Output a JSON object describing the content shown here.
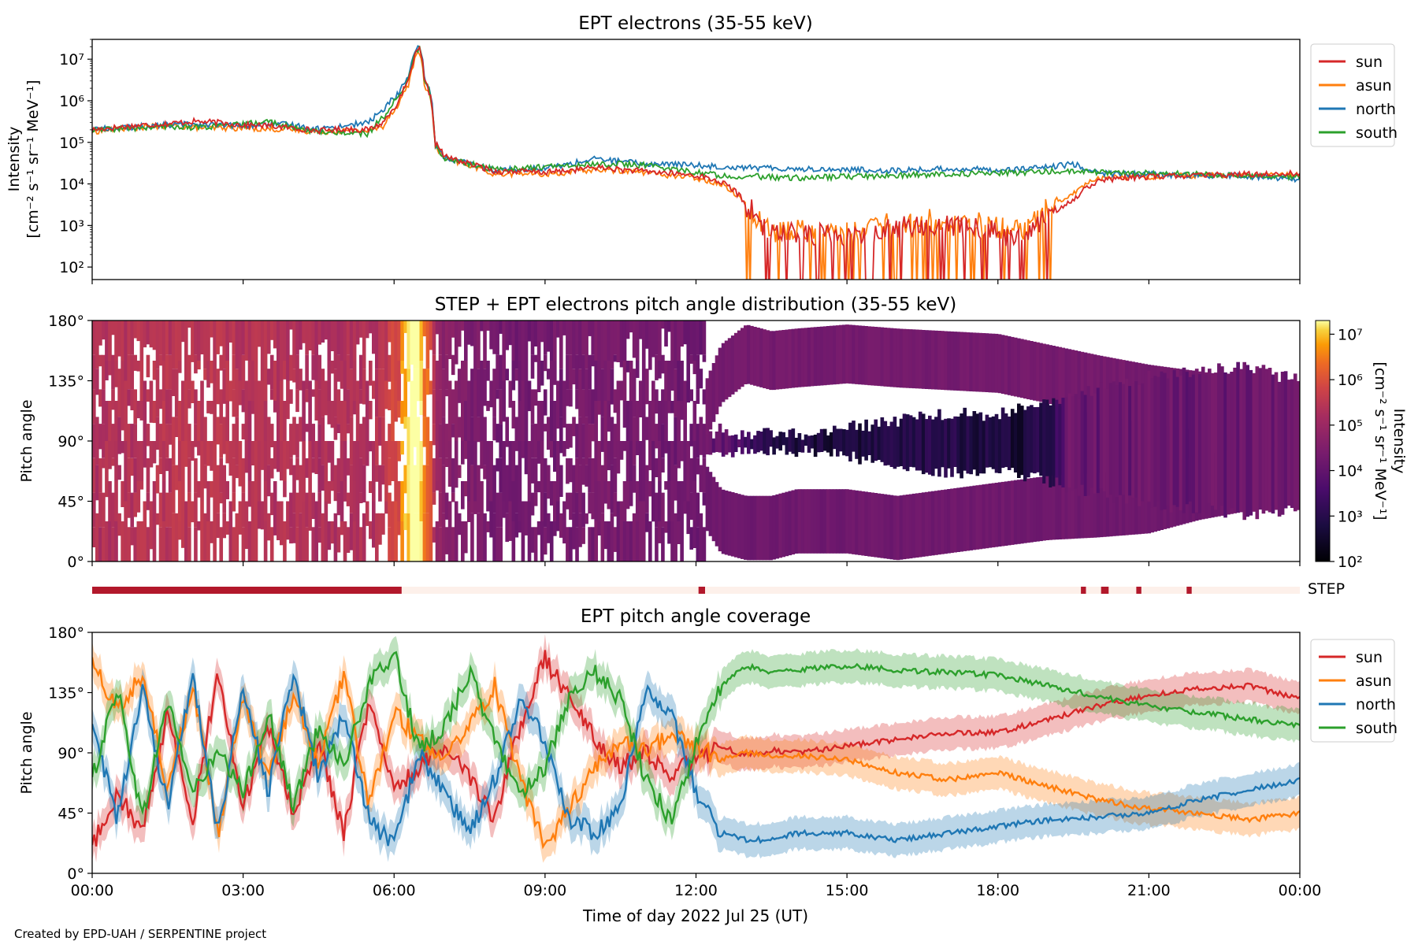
{
  "footer": "Created by EPD-UAH / SERPENTINE project",
  "chart_data": [
    {
      "type": "line",
      "title": "EPT electrons (35-55 keV)",
      "ylabel_lines": [
        "Intensity",
        "[cm⁻² s⁻¹ sr⁻¹ MeV⁻¹]"
      ],
      "yscale": "log",
      "ylim": [
        50,
        30000000
      ],
      "yticks": [
        100,
        1000,
        10000,
        100000,
        1000000,
        10000000
      ],
      "ytick_labels": [
        "10²",
        "10³",
        "10⁴",
        "10⁵",
        "10⁶",
        "10⁷"
      ],
      "xlim_hours": [
        0,
        24
      ],
      "legend_position": "outside-right",
      "x_hours": [
        0,
        0.5,
        1,
        1.5,
        2,
        2.5,
        3,
        3.5,
        4,
        4.5,
        5,
        5.5,
        5.8,
        6.1,
        6.3,
        6.5,
        6.6,
        6.8,
        7,
        7.5,
        8,
        8.5,
        9,
        9.5,
        10,
        10.5,
        11,
        11.5,
        12,
        12.5,
        13,
        13.3,
        13.6,
        14,
        15,
        16,
        17,
        18,
        18.5,
        19,
        19.5,
        20,
        21,
        22,
        23,
        24
      ],
      "series": [
        {
          "name": "sun",
          "color": "#d62728",
          "values": [
            200000,
            230000,
            260000,
            280000,
            320000,
            300000,
            260000,
            250000,
            220000,
            190000,
            210000,
            200000,
            300000,
            900000,
            3000000,
            18000000,
            3000000,
            100000,
            45000,
            30000,
            20000,
            20000,
            19000,
            21000,
            25000,
            22000,
            20000,
            18000,
            16000,
            11000,
            3000,
            1000,
            600,
            700,
            500,
            900,
            1000,
            700,
            400,
            1500,
            4000,
            12000,
            15000,
            16000,
            17000,
            18000
          ]
        },
        {
          "name": "asun",
          "color": "#ff7f0e",
          "values": [
            180000,
            210000,
            230000,
            250000,
            230000,
            220000,
            220000,
            210000,
            200000,
            180000,
            190000,
            190000,
            250000,
            800000,
            2500000,
            15000000,
            2500000,
            80000,
            40000,
            28000,
            17000,
            18000,
            17000,
            19000,
            22000,
            21000,
            19000,
            16000,
            14000,
            10000,
            2800,
            1100,
            700,
            800,
            700,
            1200,
            1500,
            900,
            700,
            2500,
            6000,
            14000,
            15000,
            16000,
            16000,
            17000
          ]
        },
        {
          "name": "north",
          "color": "#1f77b4",
          "values": [
            210000,
            220000,
            240000,
            260000,
            280000,
            260000,
            250000,
            280000,
            260000,
            210000,
            250000,
            300000,
            600000,
            1500000,
            4000000,
            20000000,
            3500000,
            90000,
            42000,
            30000,
            22000,
            23000,
            24000,
            30000,
            40000,
            35000,
            30000,
            30000,
            28000,
            26000,
            25000,
            24000,
            24000,
            23000,
            22000,
            21000,
            23000,
            22000,
            23000,
            25000,
            30000,
            18000,
            17000,
            16000,
            15000,
            13000
          ]
        },
        {
          "name": "south",
          "color": "#2ca02c",
          "values": [
            190000,
            210000,
            220000,
            240000,
            230000,
            240000,
            270000,
            320000,
            220000,
            180000,
            170000,
            160000,
            400000,
            1200000,
            3500000,
            19000000,
            3200000,
            85000,
            40000,
            30000,
            22000,
            24000,
            26000,
            27000,
            30000,
            30000,
            28000,
            23000,
            19000,
            16000,
            15000,
            15000,
            14000,
            14000,
            15000,
            16000,
            17000,
            18000,
            19000,
            20000,
            20000,
            19000,
            18000,
            17000,
            16000,
            15000
          ]
        }
      ]
    },
    {
      "type": "heatmap",
      "title": "STEP + EPT electrons pitch angle distribution (35-55 keV)",
      "ylabel": "Pitch angle",
      "ylim": [
        0,
        180
      ],
      "yticks": [
        0,
        45,
        90,
        135,
        180
      ],
      "ytick_labels": [
        "0°",
        "45°",
        "90°",
        "135°",
        "180°"
      ],
      "xlim_hours": [
        0,
        24
      ],
      "colormap": "inferno",
      "colorbar": {
        "label_lines": [
          "Intensity",
          "[cm⁻² s⁻¹ sr⁻¹ MeV⁻¹]"
        ],
        "scale": "log",
        "range": [
          100,
          20000000
        ],
        "ticks": [
          100,
          1000,
          10000,
          100000,
          1000000,
          10000000
        ],
        "tick_labels": [
          "10²",
          "10³",
          "10⁴",
          "10⁵",
          "10⁶",
          "10⁷"
        ]
      }
    },
    {
      "type": "bar",
      "label": "STEP",
      "description": "STEP data availability strip",
      "xlim_hours": [
        0,
        24
      ],
      "present_color": "#b2182b",
      "absent_color": "#fdf0ea",
      "present_intervals_hours": [
        [
          0,
          6.15
        ],
        [
          12.05,
          12.18
        ],
        [
          19.65,
          19.75
        ],
        [
          20.05,
          20.2
        ],
        [
          20.75,
          20.85
        ],
        [
          21.75,
          21.85
        ]
      ]
    },
    {
      "type": "line",
      "title": "EPT pitch angle coverage",
      "ylabel": "Pitch angle",
      "xlabel": "Time of day 2022 Jul 25 (UT)",
      "ylim": [
        0,
        180
      ],
      "yticks": [
        0,
        45,
        90,
        135,
        180
      ],
      "ytick_labels": [
        "0°",
        "45°",
        "90°",
        "135°",
        "180°"
      ],
      "xlim_hours": [
        0,
        24
      ],
      "xticks_hours": [
        0,
        3,
        6,
        9,
        12,
        15,
        18,
        21,
        24
      ],
      "xtick_labels": [
        "00:00",
        "03:00",
        "06:00",
        "09:00",
        "12:00",
        "15:00",
        "18:00",
        "21:00",
        "00:00"
      ],
      "band_half_width_deg": 12,
      "legend_position": "outside-right",
      "x_hours": [
        0,
        0.5,
        1,
        1.5,
        2,
        2.5,
        3,
        3.5,
        4,
        4.5,
        5,
        5.5,
        6,
        6.5,
        7,
        7.5,
        8,
        8.5,
        9,
        9.5,
        10,
        10.5,
        11,
        11.5,
        12,
        12.5,
        13,
        13.5,
        14,
        15,
        16,
        17,
        18,
        19,
        20,
        21,
        22,
        23,
        24
      ],
      "series": [
        {
          "name": "sun",
          "color": "#d62728",
          "values": [
            20,
            60,
            30,
            120,
            40,
            150,
            50,
            110,
            45,
            100,
            30,
            130,
            60,
            80,
            95,
            70,
            40,
            110,
            160,
            130,
            100,
            80,
            90,
            75,
            85,
            95,
            88,
            92,
            90,
            95,
            100,
            105,
            105,
            115,
            125,
            133,
            138,
            140,
            130
          ]
        },
        {
          "name": "asun",
          "color": "#ff7f0e",
          "values": [
            160,
            120,
            150,
            60,
            140,
            30,
            130,
            70,
            135,
            80,
            150,
            50,
            120,
            100,
            85,
            110,
            140,
            70,
            20,
            50,
            80,
            100,
            90,
            105,
            95,
            85,
            90,
            88,
            88,
            85,
            75,
            70,
            75,
            65,
            55,
            48,
            45,
            40,
            45
          ]
        },
        {
          "name": "north",
          "color": "#1f77b4",
          "values": [
            110,
            40,
            140,
            50,
            150,
            30,
            140,
            60,
            150,
            70,
            120,
            40,
            20,
            90,
            60,
            30,
            70,
            130,
            100,
            40,
            30,
            50,
            140,
            120,
            60,
            30,
            25,
            25,
            30,
            30,
            25,
            30,
            35,
            40,
            42,
            45,
            55,
            62,
            70
          ]
        },
        {
          "name": "south",
          "color": "#2ca02c",
          "values": [
            70,
            140,
            40,
            130,
            60,
            90,
            60,
            120,
            50,
            110,
            80,
            140,
            165,
            90,
            110,
            150,
            100,
            60,
            80,
            130,
            150,
            130,
            70,
            40,
            95,
            140,
            155,
            150,
            152,
            155,
            152,
            150,
            148,
            140,
            132,
            125,
            120,
            115,
            110
          ]
        }
      ]
    }
  ]
}
